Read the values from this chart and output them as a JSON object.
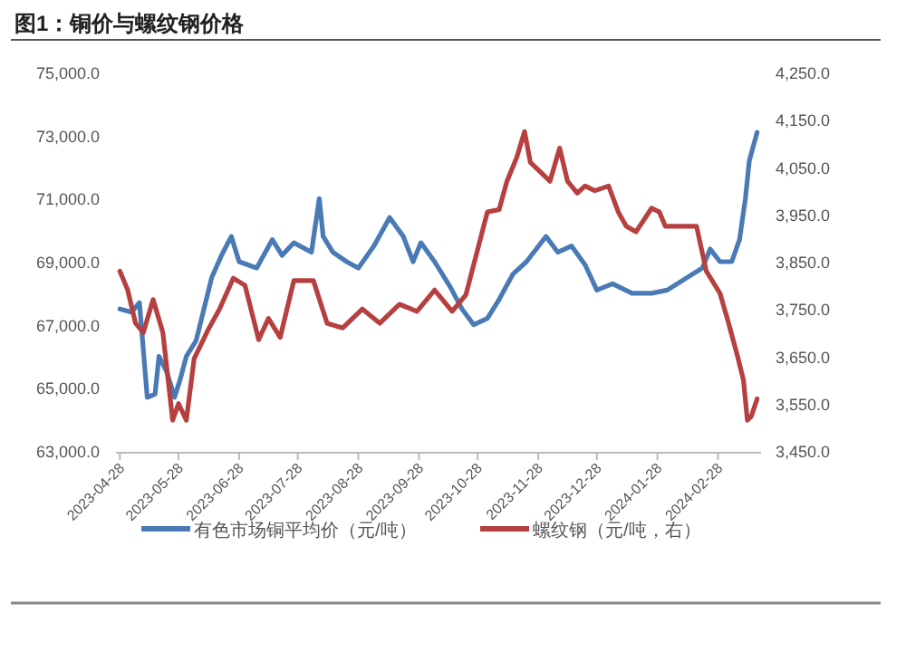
{
  "chart_data": {
    "type": "line",
    "title": "图1：铜价与螺纹钢价格",
    "legend": "bottom",
    "marker": "none",
    "line_style": "solid",
    "xlim": [
      "2023-04-26",
      "2024-03-21"
    ],
    "xticks": [
      "2023-04-28",
      "2023-05-28",
      "2023-06-28",
      "2023-07-28",
      "2023-08-28",
      "2023-09-28",
      "2023-10-28",
      "2023-11-28",
      "2023-12-28",
      "2024-01-28",
      "2024-02-28"
    ],
    "ylim": [
      63000,
      75000
    ],
    "yticks": [
      {
        "value": 63000,
        "label": "63,000.0"
      },
      {
        "value": 65000,
        "label": "65,000.0"
      },
      {
        "value": 67000,
        "label": "67,000.0"
      },
      {
        "value": 69000,
        "label": "69,000.0"
      },
      {
        "value": 71000,
        "label": "71,000.0"
      },
      {
        "value": 73000,
        "label": "73,000.0"
      },
      {
        "value": 75000,
        "label": "75,000.0"
      }
    ],
    "y2lim": [
      3450,
      4250
    ],
    "y2ticks": [
      {
        "value": 3450,
        "label": "3,450.0"
      },
      {
        "value": 3550,
        "label": "3,550.0"
      },
      {
        "value": 3650,
        "label": "3,650.0"
      },
      {
        "value": 3750,
        "label": "3,750.0"
      },
      {
        "value": 3850,
        "label": "3,850.0"
      },
      {
        "value": 3950,
        "label": "3,950.0"
      },
      {
        "value": 4050,
        "label": "4,050.0"
      },
      {
        "value": 4150,
        "label": "4,150.0"
      },
      {
        "value": 4250,
        "label": "4,250.0"
      }
    ],
    "series": [
      {
        "name": "有色市场铜平均价（元/吨）",
        "color": "#4a7ab5",
        "x": [
          "2023-04-28",
          "2023-05-04",
          "2023-05-08",
          "2023-05-12",
          "2023-05-16",
          "2023-05-18",
          "2023-05-22",
          "2023-05-26",
          "2023-05-29",
          "2023-06-01",
          "2023-06-06",
          "2023-06-14",
          "2023-06-19",
          "2023-06-24",
          "2023-06-28",
          "2023-07-07",
          "2023-07-15",
          "2023-07-20",
          "2023-07-26",
          "2023-08-04",
          "2023-08-08",
          "2023-08-10",
          "2023-08-15",
          "2023-08-22",
          "2023-08-28",
          "2023-09-05",
          "2023-09-13",
          "2023-09-20",
          "2023-09-25",
          "2023-09-29",
          "2023-10-06",
          "2023-10-14",
          "2023-10-20",
          "2023-10-26",
          "2023-11-02",
          "2023-11-08",
          "2023-11-15",
          "2023-11-22",
          "2023-12-02",
          "2023-12-08",
          "2023-12-15",
          "2023-12-22",
          "2023-12-28",
          "2024-01-05",
          "2024-01-15",
          "2024-01-25",
          "2024-02-02",
          "2024-02-20",
          "2024-02-24",
          "2024-02-29",
          "2024-03-06",
          "2024-03-10",
          "2024-03-13",
          "2024-03-15",
          "2024-03-19"
        ],
        "values": [
          67500,
          67400,
          67700,
          64700,
          64800,
          66000,
          65500,
          64700,
          65300,
          66000,
          66500,
          68500,
          69200,
          69800,
          69000,
          68800,
          69700,
          69200,
          69600,
          69300,
          71000,
          69800,
          69300,
          69000,
          68800,
          69500,
          70400,
          69800,
          69000,
          69600,
          69000,
          68200,
          67500,
          67000,
          67200,
          67800,
          68600,
          69000,
          69800,
          69300,
          69500,
          68900,
          68100,
          68300,
          68000,
          68000,
          68100,
          68800,
          69400,
          69000,
          69000,
          69700,
          71000,
          72200,
          73100
        ]
      },
      {
        "name": "螺纹钢（元/吨，右）",
        "color": "#b5403f",
        "axis": "y2",
        "x": [
          "2023-04-28",
          "2023-05-02",
          "2023-05-06",
          "2023-05-10",
          "2023-05-15",
          "2023-05-20",
          "2023-05-25",
          "2023-05-28",
          "2023-06-01",
          "2023-06-05",
          "2023-06-12",
          "2023-06-18",
          "2023-06-25",
          "2023-07-01",
          "2023-07-08",
          "2023-07-13",
          "2023-07-19",
          "2023-07-26",
          "2023-08-05",
          "2023-08-12",
          "2023-08-20",
          "2023-08-30",
          "2023-09-08",
          "2023-09-18",
          "2023-09-27",
          "2023-10-06",
          "2023-10-15",
          "2023-10-22",
          "2023-11-02",
          "2023-11-08",
          "2023-11-12",
          "2023-11-17",
          "2023-11-21",
          "2023-11-24",
          "2023-11-29",
          "2023-12-04",
          "2023-12-09",
          "2023-12-13",
          "2023-12-18",
          "2023-12-22",
          "2023-12-27",
          "2024-01-03",
          "2024-01-08",
          "2024-01-12",
          "2024-01-17",
          "2024-01-25",
          "2024-01-29",
          "2024-02-01",
          "2024-02-17",
          "2024-02-22",
          "2024-02-29",
          "2024-03-04",
          "2024-03-09",
          "2024-03-12",
          "2024-03-14",
          "2024-03-16",
          "2024-03-19"
        ],
        "values": [
          3830,
          3790,
          3720,
          3700,
          3770,
          3700,
          3515,
          3550,
          3515,
          3645,
          3705,
          3750,
          3815,
          3800,
          3685,
          3730,
          3690,
          3810,
          3810,
          3720,
          3710,
          3750,
          3720,
          3760,
          3745,
          3790,
          3745,
          3780,
          3955,
          3960,
          4020,
          4070,
          4125,
          4060,
          4040,
          4020,
          4090,
          4020,
          3995,
          4010,
          4000,
          4010,
          3955,
          3925,
          3913,
          3963,
          3955,
          3925,
          3925,
          3830,
          3783,
          3726,
          3650,
          3600,
          3515,
          3523,
          3560
        ]
      }
    ]
  }
}
